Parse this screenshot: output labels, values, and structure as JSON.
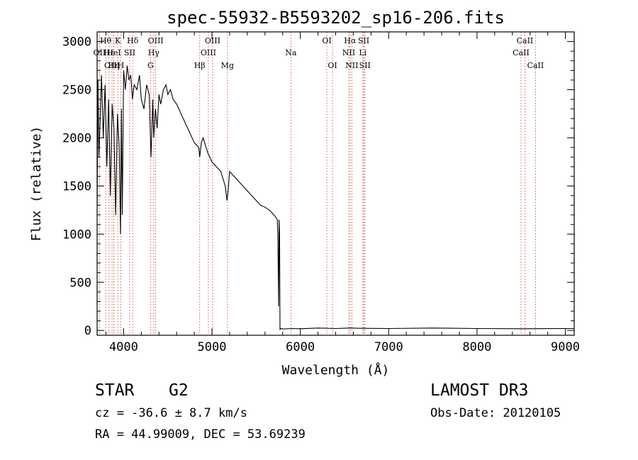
{
  "chart_data": {
    "type": "line",
    "title": "spec-55932-B5593202_sp16-206.fits",
    "xlabel": "Wavelength (Å)",
    "ylabel": "Flux (relative)",
    "xlim": [
      3700,
      9100
    ],
    "ylim": [
      -50,
      3100
    ],
    "x_ticks": [
      4000,
      5000,
      6000,
      7000,
      8000,
      9000
    ],
    "y_ticks": [
      0,
      500,
      1000,
      1500,
      2000,
      2500,
      3000
    ],
    "x_tick_labels": [
      "4000",
      "5000",
      "6000",
      "7000",
      "8000",
      "9000"
    ],
    "y_tick_labels": [
      "0",
      "500",
      "1000",
      "1500",
      "2000",
      "2500",
      "3000"
    ],
    "line_color": "#000000",
    "marker_color": "#c0392b",
    "series": [
      {
        "name": "flux",
        "x": [
          3700,
          3710,
          3720,
          3735,
          3750,
          3770,
          3790,
          3810,
          3830,
          3850,
          3870,
          3890,
          3910,
          3930,
          3950,
          3965,
          3975,
          3985,
          4000,
          4020,
          4040,
          4060,
          4080,
          4100,
          4120,
          4150,
          4180,
          4200,
          4230,
          4260,
          4290,
          4310,
          4330,
          4340,
          4360,
          4380,
          4400,
          4420,
          4450,
          4480,
          4500,
          4530,
          4560,
          4600,
          4650,
          4700,
          4750,
          4800,
          4850,
          4861,
          4880,
          4900,
          4950,
          5000,
          5050,
          5100,
          5150,
          5170,
          5183,
          5200,
          5250,
          5300,
          5350,
          5400,
          5450,
          5500,
          5550,
          5600,
          5650,
          5700,
          5720,
          5740,
          5745,
          5755,
          5760,
          5765,
          5770,
          5780,
          5800,
          5900,
          6000,
          6200,
          6400,
          6563,
          6700,
          7000,
          7500,
          8000,
          8500,
          9000,
          9100
        ],
        "y": [
          1300,
          2600,
          1800,
          2200,
          2650,
          2000,
          2550,
          1700,
          2400,
          1400,
          2350,
          2100,
          1200,
          2250,
          1900,
          1000,
          2300,
          1200,
          2700,
          2500,
          2750,
          2600,
          2650,
          2400,
          2550,
          2500,
          2650,
          2400,
          2300,
          2550,
          2450,
          1800,
          2400,
          2000,
          2300,
          2100,
          2450,
          2350,
          2500,
          2550,
          2450,
          2500,
          2400,
          2350,
          2250,
          2150,
          2050,
          1950,
          1900,
          1800,
          1950,
          2000,
          1850,
          1750,
          1700,
          1650,
          1500,
          1350,
          1450,
          1650,
          1600,
          1550,
          1500,
          1450,
          1400,
          1350,
          1300,
          1280,
          1250,
          1200,
          1180,
          1150,
          1000,
          250,
          1150,
          1000,
          10,
          20,
          15,
          20,
          18,
          25,
          20,
          25,
          22,
          20,
          25,
          20,
          18,
          20,
          20
        ]
      }
    ],
    "line_markers": [
      {
        "label": "Hθ",
        "x": 3797,
        "row": 1
      },
      {
        "label": "OII",
        "x": 3727,
        "row": 2
      },
      {
        "label": "Hε",
        "x": 3835,
        "row": 2
      },
      {
        "label": "OIII",
        "x": 3869,
        "row": 3
      },
      {
        "label": "Hη",
        "x": 3889,
        "row": 3
      },
      {
        "label": "K",
        "x": 3934,
        "row": 1
      },
      {
        "label": "HeI",
        "x": 3889,
        "row": 2
      },
      {
        "label": "H",
        "x": 3968,
        "row": 3
      },
      {
        "label": "SII",
        "x": 4069,
        "row": 2
      },
      {
        "label": "Hδ",
        "x": 4102,
        "row": 1
      },
      {
        "label": "OIII",
        "x": 4363,
        "row": 1
      },
      {
        "label": "Hγ",
        "x": 4341,
        "row": 2
      },
      {
        "label": "G",
        "x": 4305,
        "row": 3
      },
      {
        "label": "Hβ",
        "x": 4861,
        "row": 3
      },
      {
        "label": "OIII",
        "x": 5007,
        "row": 1
      },
      {
        "label": "OIII",
        "x": 4959,
        "row": 2
      },
      {
        "label": "Mg",
        "x": 5175,
        "row": 3
      },
      {
        "label": "Na",
        "x": 5893,
        "row": 2
      },
      {
        "label": "OI",
        "x": 6300,
        "row": 1
      },
      {
        "label": "OI",
        "x": 6364,
        "row": 3
      },
      {
        "label": "Hα",
        "x": 6563,
        "row": 1
      },
      {
        "label": "NII",
        "x": 6548,
        "row": 2
      },
      {
        "label": "SII",
        "x": 6717,
        "row": 1
      },
      {
        "label": "Li",
        "x": 6708,
        "row": 2
      },
      {
        "label": "NII",
        "x": 6583,
        "row": 3
      },
      {
        "label": "SII",
        "x": 6731,
        "row": 3
      },
      {
        "label": "CaII",
        "x": 8542,
        "row": 1
      },
      {
        "label": "CaII",
        "x": 8498,
        "row": 2
      },
      {
        "label": "CaII",
        "x": 8662,
        "row": 3
      }
    ]
  },
  "footer": {
    "object_class": "STAR",
    "subclass": "G2",
    "survey": "LAMOST DR3",
    "redshift": "cz = -36.6 ± 8.7 km/s",
    "obs_date": "Obs-Date: 20120105",
    "coords": "RA =  44.99009, DEC =  53.69239"
  }
}
